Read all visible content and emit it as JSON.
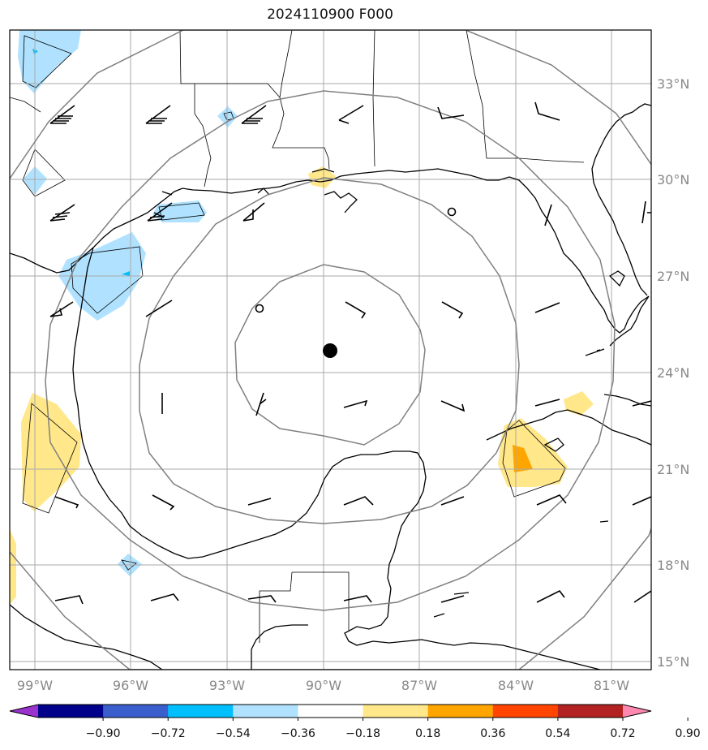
{
  "title": "2024110900 F000",
  "map": {
    "lon_range": [
      -99.7,
      -80.5
    ],
    "lat_range": [
      14.7,
      34.6
    ],
    "lon_ticks": [
      "99°W",
      "96°W",
      "93°W",
      "90°W",
      "87°W",
      "84°W",
      "81°W"
    ],
    "lat_ticks": [
      "33°N",
      "30°N",
      "27°N",
      "24°N",
      "21°N",
      "18°N",
      "15°N"
    ],
    "center": {
      "lon": -89.8,
      "lat": 24.7
    },
    "range_rings": 4
  },
  "colorbar": {
    "ticks": [
      "−0.90",
      "−0.72",
      "−0.54",
      "−0.36",
      "−0.18",
      "0.18",
      "0.36",
      "0.54",
      "0.72",
      "0.90"
    ],
    "colors": [
      "#9a32cd",
      "#00008b",
      "#3a5fcd",
      "#00bfff",
      "#b0e2ff",
      "#ffffff",
      "#ffe78a",
      "#ffa500",
      "#ff4500",
      "#b22222",
      "#ff88b0"
    ]
  }
}
